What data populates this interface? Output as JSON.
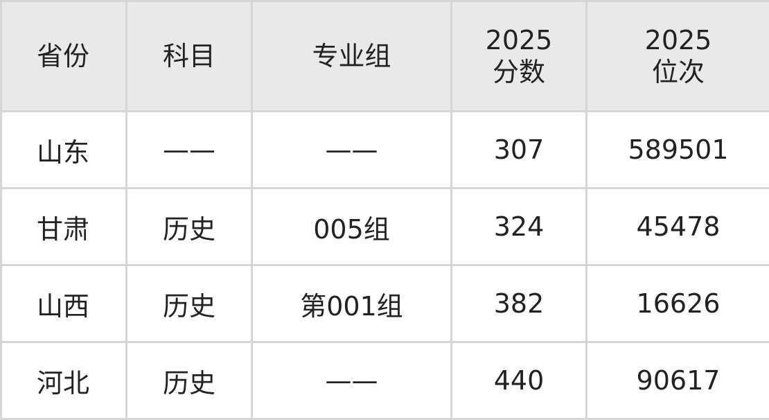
{
  "headers": [
    "省份",
    "科目",
    "专业组",
    "2025\n分数",
    "2025\n位次"
  ],
  "header_lines": [
    [
      "省份"
    ],
    [
      "科目"
    ],
    [
      "专业组"
    ],
    [
      "2025",
      "分数"
    ],
    [
      "2025",
      "位次"
    ]
  ],
  "rows": [
    [
      "山东",
      "——",
      "——",
      "307",
      "589501"
    ],
    [
      "甘肃",
      "历史",
      "005组",
      "324",
      "45478"
    ],
    [
      "山西",
      "历史",
      "第001组",
      "382",
      "16626"
    ],
    [
      "河北",
      "历史",
      "——",
      "440",
      "90617"
    ]
  ]
}
